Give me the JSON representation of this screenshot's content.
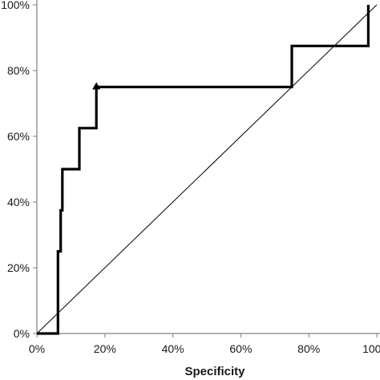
{
  "chart_data": {
    "type": "line",
    "title": "",
    "xlabel": "Specificity",
    "ylabel": "",
    "xlim": [
      0,
      100
    ],
    "ylim": [
      0,
      100
    ],
    "x_ticks": [
      0,
      20,
      40,
      60,
      80,
      100
    ],
    "y_ticks": [
      0,
      20,
      40,
      60,
      80,
      100
    ],
    "x_tick_labels": [
      "0%",
      "20%",
      "40%",
      "60%",
      "80%",
      "100%"
    ],
    "y_tick_labels": [
      "0%",
      "20%",
      "40%",
      "60%",
      "80%",
      "100%"
    ],
    "grid": false,
    "legend": "none",
    "series": [
      {
        "style": "step",
        "color": "#000000",
        "x": [
          0,
          6.2,
          6.2,
          7,
          7,
          7.5,
          7.5,
          12.5,
          12.5,
          17.5,
          17.5,
          75,
          75,
          97.5,
          97.5
        ],
        "y": [
          0,
          0,
          25,
          25,
          37.5,
          37.5,
          50,
          50,
          62.5,
          62.5,
          75,
          75,
          87.5,
          87.5,
          100
        ],
        "marker": {
          "x": 17.5,
          "y": 75,
          "shape": "triangle"
        }
      },
      {
        "style": "reference",
        "color": "#000000",
        "x": [
          0,
          100
        ],
        "y": [
          0,
          100
        ]
      }
    ]
  }
}
